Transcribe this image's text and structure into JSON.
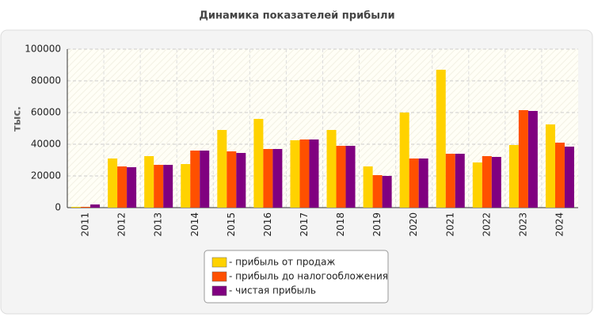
{
  "chart_data": {
    "type": "bar",
    "title": "Динамика показателей прибыли",
    "y_label": "тыс.",
    "categories": [
      "2011",
      "2012",
      "2013",
      "2014",
      "2015",
      "2016",
      "2017",
      "2018",
      "2019",
      "2020",
      "2021",
      "2022",
      "2023",
      "2024"
    ],
    "series": [
      {
        "name": "- прибыль от продаж",
        "color": "#ffd200",
        "values": [
          500,
          31000,
          32500,
          27500,
          49000,
          56000,
          42500,
          49000,
          26000,
          60000,
          87000,
          28500,
          39500,
          52500
        ]
      },
      {
        "name": "- прибыль до налогообложения",
        "color": "#ff5000",
        "values": [
          500,
          26000,
          27000,
          36000,
          35500,
          37000,
          43000,
          39000,
          20500,
          31000,
          34000,
          32500,
          61500,
          41000
        ]
      },
      {
        "name": "- чистая прибыль",
        "color": "#800080",
        "values": [
          2000,
          25500,
          27000,
          36000,
          34500,
          37000,
          43000,
          39000,
          20000,
          31000,
          34000,
          32000,
          61000,
          38500
        ]
      }
    ],
    "ylim": [
      0,
      100000
    ],
    "yticks": [
      0,
      20000,
      40000,
      60000,
      80000,
      100000
    ],
    "grid": true,
    "legend": "bottom"
  }
}
